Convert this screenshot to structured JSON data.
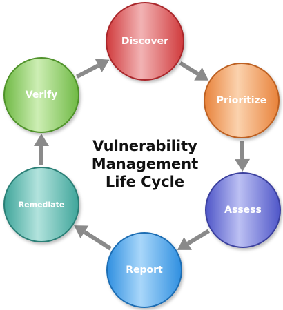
{
  "title": {
    "line1": "Vulnerability",
    "line2": "Management",
    "line3": "Life Cycle"
  },
  "nodes": [
    {
      "id": "discover",
      "label": "Discover",
      "color": "#d03a3c",
      "highlight": "#f2b3b4",
      "border": "#a9262a"
    },
    {
      "id": "prioritize",
      "label": "Prioritize",
      "color": "#e8823a",
      "highlight": "#fbd2ae",
      "border": "#bd6120"
    },
    {
      "id": "assess",
      "label": "Assess",
      "color": "#4f56c8",
      "highlight": "#bcc0f3",
      "border": "#3a3f9e"
    },
    {
      "id": "report",
      "label": "Report",
      "color": "#2f8fe0",
      "highlight": "#a9d7fa",
      "border": "#1d6db3"
    },
    {
      "id": "remediate",
      "label": "Remediate",
      "color": "#3fa59a",
      "highlight": "#b2e3dd",
      "border": "#2b7f76"
    },
    {
      "id": "verify",
      "label": "Verify",
      "color": "#6fb944",
      "highlight": "#cdeeb4",
      "border": "#4f9229"
    }
  ],
  "arrow_color": "#8a8a8a"
}
